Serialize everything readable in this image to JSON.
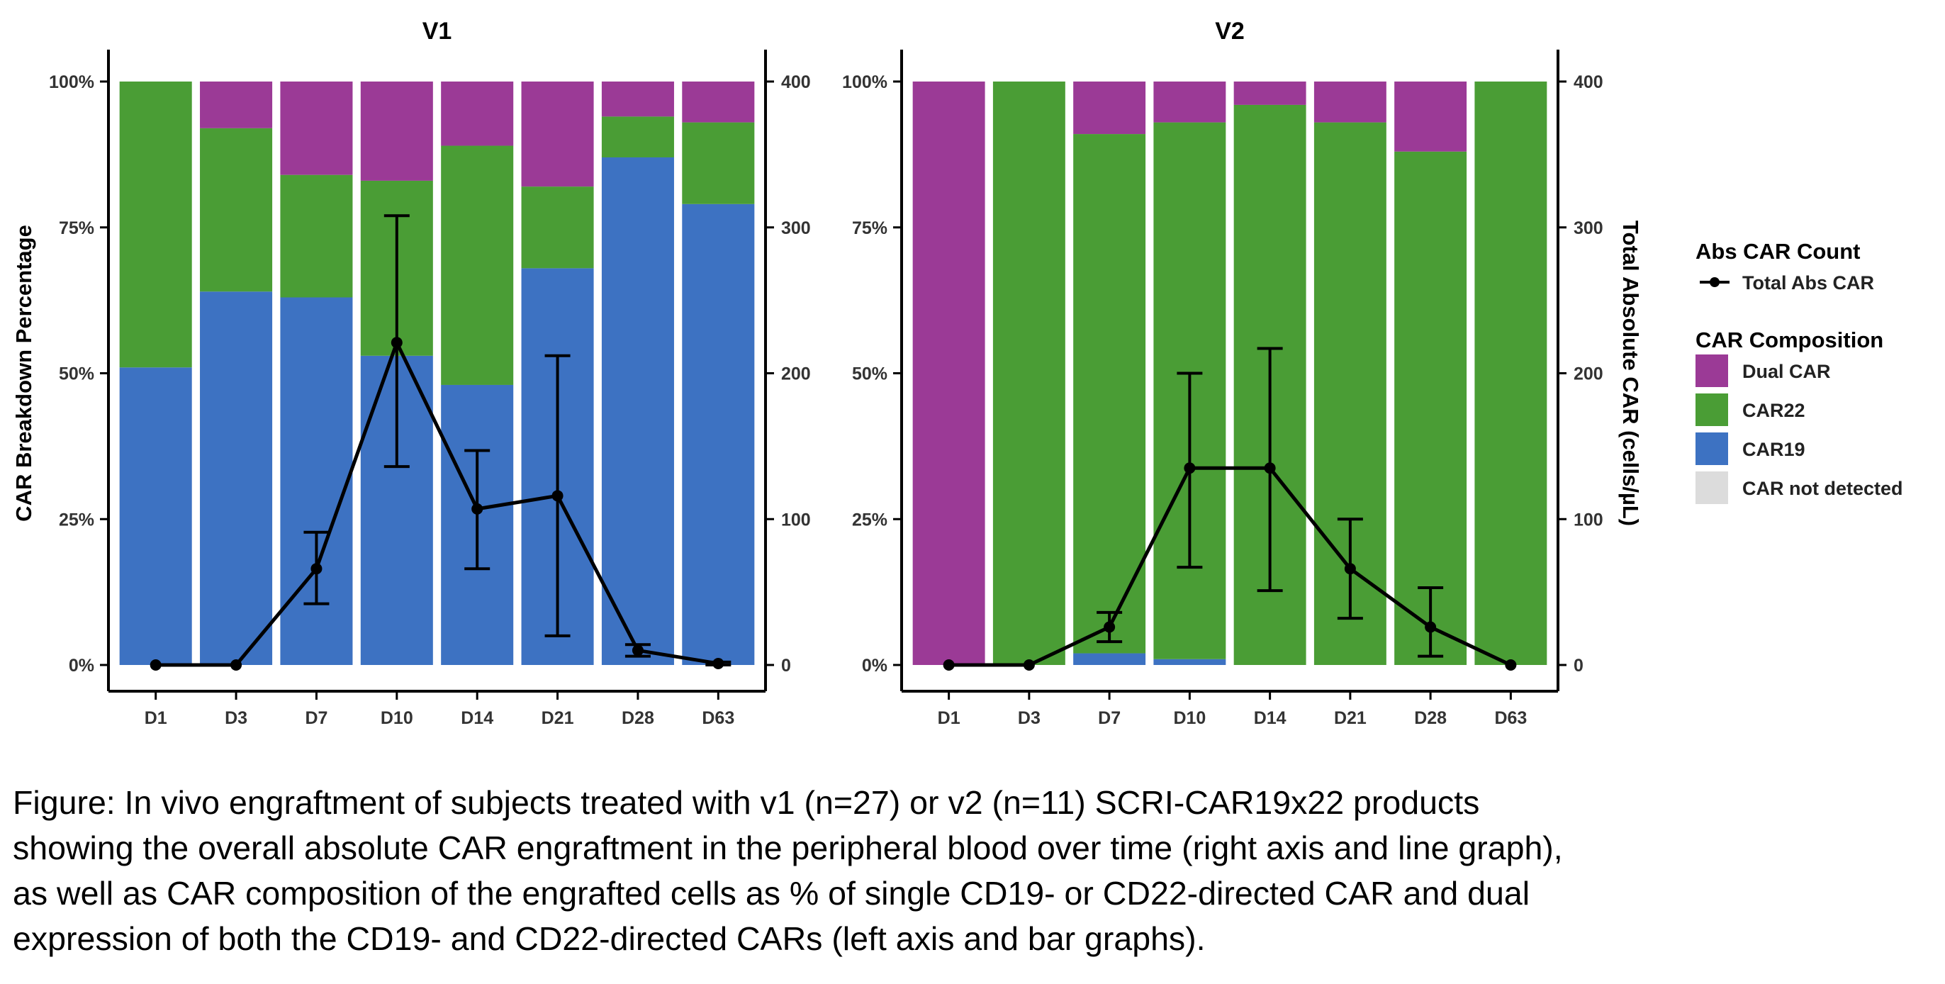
{
  "chart_data": [
    {
      "type": "bar",
      "title": "V1",
      "stacked": true,
      "categories": [
        "D1",
        "D3",
        "D7",
        "D10",
        "D14",
        "D21",
        "D28",
        "D63"
      ],
      "ylabel": "CAR Breakdown Percentage",
      "ylim": [
        0,
        100
      ],
      "yticks": [
        "0%",
        "25%",
        "50%",
        "75%",
        "100%"
      ],
      "y2label": "Total Absolute CAR (cells/µL)",
      "y2lim": [
        0,
        400
      ],
      "y2ticks": [
        "0",
        "100",
        "200",
        "300",
        "400"
      ],
      "series": [
        {
          "name": "CAR19",
          "key": "car19",
          "values": [
            51,
            64,
            63,
            53,
            48,
            68,
            87,
            79
          ]
        },
        {
          "name": "CAR22",
          "key": "car22",
          "values": [
            49,
            28,
            21,
            30,
            41,
            14,
            7,
            14
          ]
        },
        {
          "name": "Dual CAR",
          "key": "dual",
          "values": [
            0,
            8,
            16,
            17,
            11,
            18,
            6,
            7
          ]
        },
        {
          "name": "CAR not detected",
          "key": "nd",
          "values": [
            0,
            0,
            0,
            0,
            0,
            0,
            0,
            0
          ]
        }
      ],
      "line": {
        "name": "Total Abs CAR",
        "values": [
          0,
          0,
          66,
          221,
          107,
          116,
          10,
          1
        ],
        "err_low": [
          0,
          0,
          42,
          136,
          66,
          20,
          6,
          0
        ],
        "err_high": [
          0,
          0,
          91,
          308,
          147,
          212,
          14,
          2
        ]
      },
      "legend": "none",
      "grid": false
    },
    {
      "type": "bar",
      "title": "V2",
      "stacked": true,
      "categories": [
        "D1",
        "D3",
        "D7",
        "D10",
        "D14",
        "D21",
        "D28",
        "D63"
      ],
      "ylabel": "",
      "ylim": [
        0,
        100
      ],
      "yticks": [
        "0%",
        "25%",
        "50%",
        "75%",
        "100%"
      ],
      "y2label": "Total Absolute CAR (cells/µL)",
      "y2lim": [
        0,
        400
      ],
      "y2ticks": [
        "0",
        "100",
        "200",
        "300",
        "400"
      ],
      "series": [
        {
          "name": "CAR19",
          "key": "car19",
          "values": [
            0,
            0,
            2,
            1,
            0,
            0,
            0,
            0
          ]
        },
        {
          "name": "CAR22",
          "key": "car22",
          "values": [
            0,
            100,
            89,
            92,
            96,
            93,
            88,
            100
          ]
        },
        {
          "name": "Dual CAR",
          "key": "dual",
          "values": [
            100,
            0,
            9,
            7,
            4,
            7,
            12,
            0
          ]
        },
        {
          "name": "CAR not detected",
          "key": "nd",
          "values": [
            0,
            0,
            0,
            0,
            0,
            0,
            0,
            0
          ]
        }
      ],
      "line": {
        "name": "Total Abs CAR",
        "values": [
          0,
          0,
          26,
          135,
          135,
          66,
          26,
          0
        ],
        "err_low": [
          0,
          0,
          16,
          67,
          51,
          32,
          6,
          0
        ],
        "err_high": [
          0,
          0,
          36,
          200,
          217,
          100,
          53,
          0
        ]
      },
      "legend": "right",
      "grid": false
    }
  ],
  "legend": {
    "line_title": "Abs CAR Count",
    "line_item": "Total Abs CAR",
    "fill_title": "CAR Composition",
    "items": [
      {
        "label": "Dual CAR",
        "key": "dual"
      },
      {
        "label": "CAR22",
        "key": "car22"
      },
      {
        "label": "CAR19",
        "key": "car19"
      },
      {
        "label": "CAR not detected",
        "key": "nd"
      }
    ]
  },
  "colors": {
    "dual": "#9b3a96",
    "car22": "#4a9d35",
    "car19": "#3d72c2",
    "nd": "#dcdcdc",
    "line": "#000000",
    "axis": "#000000"
  },
  "caption": {
    "lines": [
      "Figure: In vivo engraftment of subjects treated with v1 (n=27) or v2 (n=11) SCRI-CAR19x22 products",
      "showing the overall absolute CAR engraftment in the peripheral blood over time (right axis and line graph),",
      "as well as CAR composition of the engrafted cells as % of single CD19- or CD22-directed CAR and dual",
      "expression of both the CD19- and CD22-directed CARs (left axis and bar graphs)."
    ]
  }
}
